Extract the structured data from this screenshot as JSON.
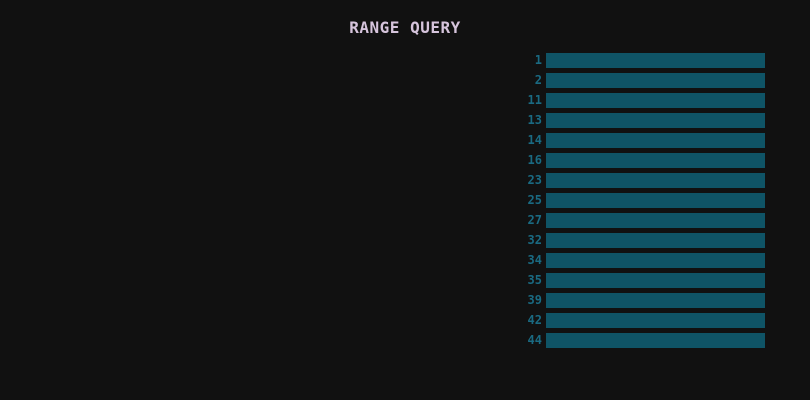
{
  "title": "RANGE QUERY",
  "colors": {
    "background": "#111111",
    "title": "#d6c4dc",
    "key_text": "#1a6a82",
    "bar_fill": "#0f5466"
  },
  "rows": [
    {
      "key": "1"
    },
    {
      "key": "2"
    },
    {
      "key": "11"
    },
    {
      "key": "13"
    },
    {
      "key": "14"
    },
    {
      "key": "16"
    },
    {
      "key": "23"
    },
    {
      "key": "25"
    },
    {
      "key": "27"
    },
    {
      "key": "32"
    },
    {
      "key": "34"
    },
    {
      "key": "35"
    },
    {
      "key": "39"
    },
    {
      "key": "42"
    },
    {
      "key": "44"
    }
  ]
}
